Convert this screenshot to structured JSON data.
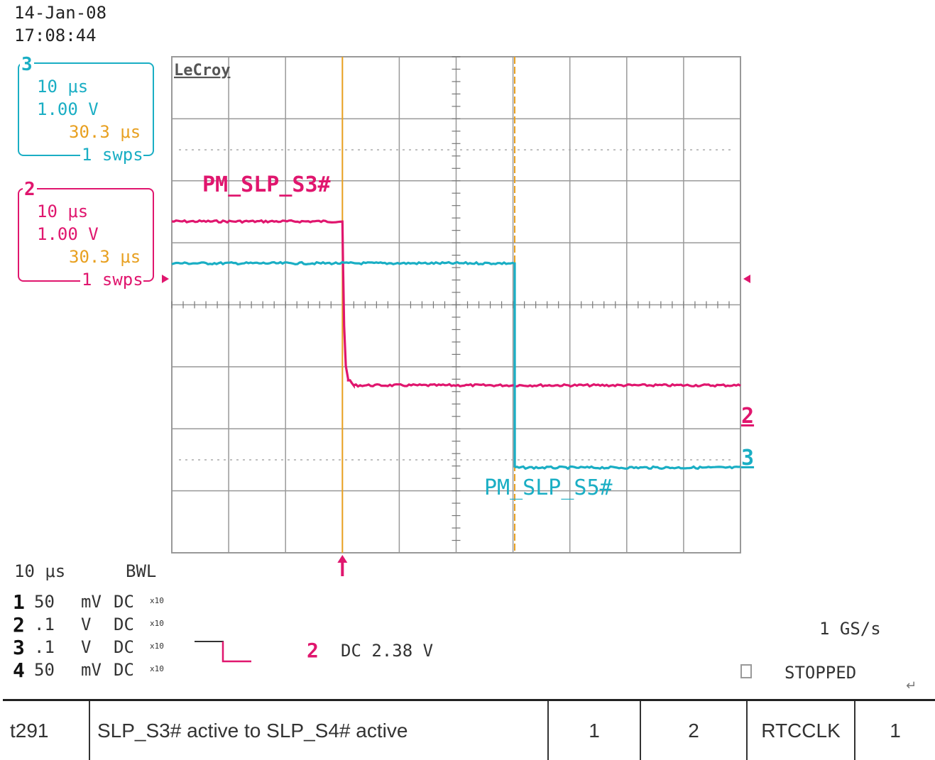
{
  "header": {
    "date": "14-Jan-08",
    "time": "17:08:44"
  },
  "brand": "LeCroy",
  "colors": {
    "ch2": "#e0166e",
    "ch3": "#1aaec4",
    "cursor": "#e8a020",
    "grid": "#999999"
  },
  "channels": {
    "ch3": {
      "id": "3",
      "timebase": "10 μs",
      "volts": "1.00 V",
      "cursor_time": "30.3 μs",
      "sweeps_n": "1",
      "sweeps_unit": "swps"
    },
    "ch2": {
      "id": "2",
      "timebase": "10 μs",
      "volts": "1.00 V",
      "cursor_time": "30.3 μs",
      "sweeps_n": "1",
      "sweeps_unit": "swps"
    }
  },
  "bottom": {
    "timebase": "10 μs",
    "bwl": "BWL",
    "rows": [
      {
        "ch": "1",
        "value": "50",
        "unit": "mV",
        "coupling": "DC",
        "probe": "x10"
      },
      {
        "ch": "2",
        "value": ".1",
        "unit": "V",
        "coupling": "DC",
        "probe": "x10"
      },
      {
        "ch": "3",
        "value": ".1",
        "unit": "V",
        "coupling": "DC",
        "probe": "x10"
      },
      {
        "ch": "4",
        "value": "50",
        "unit": "mV",
        "coupling": "DC",
        "probe": "x10"
      }
    ],
    "trigger_channel": "2",
    "trigger_text": "DC 2.38 V",
    "sample_rate": "1 GS/s",
    "status": "STOPPED"
  },
  "chart_data": {
    "type": "line",
    "title": "",
    "x_unit": "μs",
    "x_per_div": 10,
    "y_unit": "V",
    "grid": true,
    "x_divisions": 10,
    "y_divisions": 8,
    "xlim": [
      -30,
      70
    ],
    "cursors": [
      0,
      30.3
    ],
    "series": [
      {
        "name": "PM_SLP_S3#",
        "channel": "2",
        "color": "#e0166e",
        "points": [
          [
            -30,
            3.3
          ],
          [
            0,
            3.3
          ],
          [
            0.1,
            2.5
          ],
          [
            0.3,
            1.2
          ],
          [
            0.6,
            0.4
          ],
          [
            1.0,
            0.12
          ],
          [
            2,
            0.0
          ],
          [
            70,
            0.0
          ]
        ]
      },
      {
        "name": "PM_SLP_S5#",
        "channel": "3",
        "color": "#1aaec4",
        "points": [
          [
            -30,
            3.3
          ],
          [
            30.3,
            3.3
          ],
          [
            30.31,
            0.0
          ],
          [
            70,
            0.0
          ]
        ]
      }
    ],
    "trace_labels": {
      "ch2_marker": "2",
      "ch3_marker": "3"
    }
  },
  "table": {
    "cells": [
      "t291",
      "SLP_S3# active to SLP_S4# active",
      "1",
      "2",
      "RTCCLK",
      "1"
    ]
  }
}
